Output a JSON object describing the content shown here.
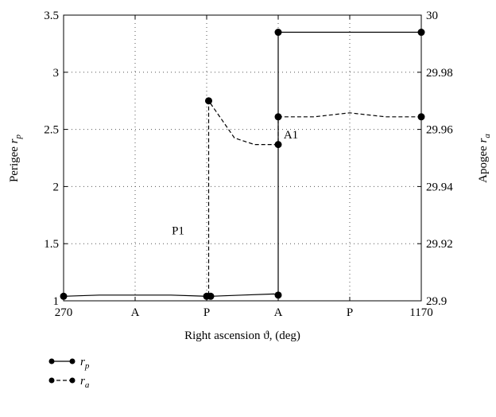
{
  "chart_data": {
    "type": "line",
    "title": "",
    "xlabel": "Right ascension ϑ, (deg)",
    "ylabel_left": {
      "main": "Perigee ",
      "sub": "p",
      "italic": "r"
    },
    "ylabel_right": {
      "main": "Apogee ",
      "sub": "a",
      "italic": "r"
    },
    "x_ticks": [
      {
        "x": 270,
        "label": "270"
      },
      {
        "x": 450,
        "label": "A"
      },
      {
        "x": 630,
        "label": "P"
      },
      {
        "x": 810,
        "label": "A"
      },
      {
        "x": 990,
        "label": "P"
      },
      {
        "x": 1170,
        "label": "1170"
      }
    ],
    "xlim": [
      270,
      1170
    ],
    "ylim_left": [
      1,
      3.5
    ],
    "yticks_left": [
      "1",
      "1.5",
      "2",
      "2.5",
      "3",
      "3.5"
    ],
    "ylim_right": [
      29.9,
      30
    ],
    "yticks_right": [
      "29.9",
      "29.92",
      "29.94",
      "29.96",
      "29.98",
      "30"
    ],
    "grid": true,
    "legend_position": "below-left",
    "series": [
      {
        "name": "r_p",
        "legend": {
          "italic": "r",
          "sub": "p"
        },
        "axis": "left",
        "style": "solid",
        "x": [
          270,
          360,
          450,
          540,
          630,
          640,
          720,
          800,
          810,
          810,
          990,
          1170
        ],
        "y": [
          1.04,
          1.05,
          1.05,
          1.05,
          1.04,
          1.04,
          1.05,
          1.06,
          1.05,
          3.35,
          3.35,
          3.35
        ]
      },
      {
        "name": "r_a",
        "legend": {
          "italic": "r",
          "sub": "a"
        },
        "axis": "right",
        "style": "dashed",
        "x": [
          635,
          635,
          660,
          700,
          750,
          800,
          810,
          810,
          900,
          990,
          1080,
          1170
        ],
        "y": [
          29.902,
          29.97,
          29.965,
          29.957,
          29.9547,
          29.9547,
          29.9547,
          29.9644,
          29.9644,
          29.9658,
          29.9644,
          29.9644
        ]
      }
    ],
    "markers_left": [
      {
        "x": 270,
        "y": 1.04
      },
      {
        "x": 630,
        "y": 1.04
      },
      {
        "x": 640,
        "y": 1.04
      },
      {
        "x": 810,
        "y": 1.05
      },
      {
        "x": 810,
        "y": 3.35
      },
      {
        "x": 1170,
        "y": 3.35
      }
    ],
    "markers_right": [
      {
        "x": 635,
        "y": 29.97
      },
      {
        "x": 810,
        "y": 29.9547
      },
      {
        "x": 810,
        "y": 29.9644
      },
      {
        "x": 1170,
        "y": 29.9644
      }
    ],
    "annotations": [
      {
        "text": "P1",
        "x": 558,
        "y": 1.58
      },
      {
        "text": "A1",
        "x": 842,
        "y": 2.42
      }
    ]
  }
}
